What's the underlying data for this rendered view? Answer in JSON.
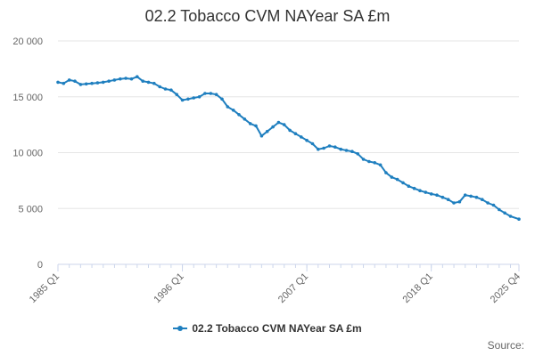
{
  "chart_data": {
    "type": "line",
    "title": "02.2 Tobacco CVM NAYear SA £m",
    "xlabel": "",
    "ylabel": "",
    "x_tick_labels": [
      "1985 Q1",
      "1996 Q1",
      "2007 Q1",
      "2018 Q1",
      "2025 Q4"
    ],
    "x_tick_years": [
      1985.0,
      1996.0,
      2007.0,
      2018.0,
      2025.75
    ],
    "xlim": [
      1985.0,
      2025.75
    ],
    "ylim": [
      0,
      20000
    ],
    "y_ticks": [
      0,
      5000,
      10000,
      15000,
      20000
    ],
    "y_tick_labels": [
      "0",
      "5 000",
      "10 000",
      "15 000",
      "20 000"
    ],
    "grid": "horizontal",
    "legend": "bottom-center",
    "series": [
      {
        "name": "02.2 Tobacco CVM NAYear SA £m",
        "color": "#1f7fbf",
        "points": [
          [
            1985.0,
            16300
          ],
          [
            1985.5,
            16200
          ],
          [
            1986.0,
            16500
          ],
          [
            1986.5,
            16400
          ],
          [
            1987.0,
            16100
          ],
          [
            1987.5,
            16150
          ],
          [
            1988.0,
            16200
          ],
          [
            1988.5,
            16250
          ],
          [
            1989.0,
            16300
          ],
          [
            1989.5,
            16400
          ],
          [
            1990.0,
            16500
          ],
          [
            1990.5,
            16600
          ],
          [
            1991.0,
            16650
          ],
          [
            1991.5,
            16600
          ],
          [
            1992.0,
            16800
          ],
          [
            1992.5,
            16400
          ],
          [
            1993.0,
            16300
          ],
          [
            1993.5,
            16200
          ],
          [
            1994.0,
            15900
          ],
          [
            1994.5,
            15700
          ],
          [
            1995.0,
            15600
          ],
          [
            1995.5,
            15200
          ],
          [
            1996.0,
            14700
          ],
          [
            1996.5,
            14800
          ],
          [
            1997.0,
            14900
          ],
          [
            1997.5,
            15000
          ],
          [
            1998.0,
            15300
          ],
          [
            1998.5,
            15300
          ],
          [
            1999.0,
            15200
          ],
          [
            1999.5,
            14800
          ],
          [
            2000.0,
            14100
          ],
          [
            2000.5,
            13800
          ],
          [
            2001.0,
            13400
          ],
          [
            2001.5,
            13000
          ],
          [
            2002.0,
            12600
          ],
          [
            2002.5,
            12400
          ],
          [
            2003.0,
            11500
          ],
          [
            2003.5,
            11900
          ],
          [
            2004.0,
            12300
          ],
          [
            2004.5,
            12700
          ],
          [
            2005.0,
            12500
          ],
          [
            2005.5,
            12000
          ],
          [
            2006.0,
            11700
          ],
          [
            2006.5,
            11400
          ],
          [
            2007.0,
            11100
          ],
          [
            2007.5,
            10800
          ],
          [
            2008.0,
            10300
          ],
          [
            2008.5,
            10400
          ],
          [
            2009.0,
            10600
          ],
          [
            2009.5,
            10500
          ],
          [
            2010.0,
            10300
          ],
          [
            2010.5,
            10200
          ],
          [
            2011.0,
            10100
          ],
          [
            2011.5,
            9900
          ],
          [
            2012.0,
            9400
          ],
          [
            2012.5,
            9200
          ],
          [
            2013.0,
            9100
          ],
          [
            2013.5,
            8900
          ],
          [
            2014.0,
            8200
          ],
          [
            2014.5,
            7800
          ],
          [
            2015.0,
            7600
          ],
          [
            2015.5,
            7300
          ],
          [
            2016.0,
            7000
          ],
          [
            2016.5,
            6800
          ],
          [
            2017.0,
            6600
          ],
          [
            2017.5,
            6450
          ],
          [
            2018.0,
            6300
          ],
          [
            2018.5,
            6200
          ],
          [
            2019.0,
            6000
          ],
          [
            2019.5,
            5800
          ],
          [
            2020.0,
            5500
          ],
          [
            2020.5,
            5600
          ],
          [
            2021.0,
            6200
          ],
          [
            2021.5,
            6100
          ],
          [
            2022.0,
            6000
          ],
          [
            2022.5,
            5800
          ],
          [
            2023.0,
            5500
          ],
          [
            2023.5,
            5300
          ],
          [
            2024.0,
            4900
          ],
          [
            2024.5,
            4600
          ],
          [
            2025.0,
            4300
          ],
          [
            2025.75,
            4050
          ]
        ]
      }
    ]
  },
  "legend": {
    "label": "02.2 Tobacco CVM NAYear SA £m"
  },
  "source": {
    "label": "Source:"
  }
}
